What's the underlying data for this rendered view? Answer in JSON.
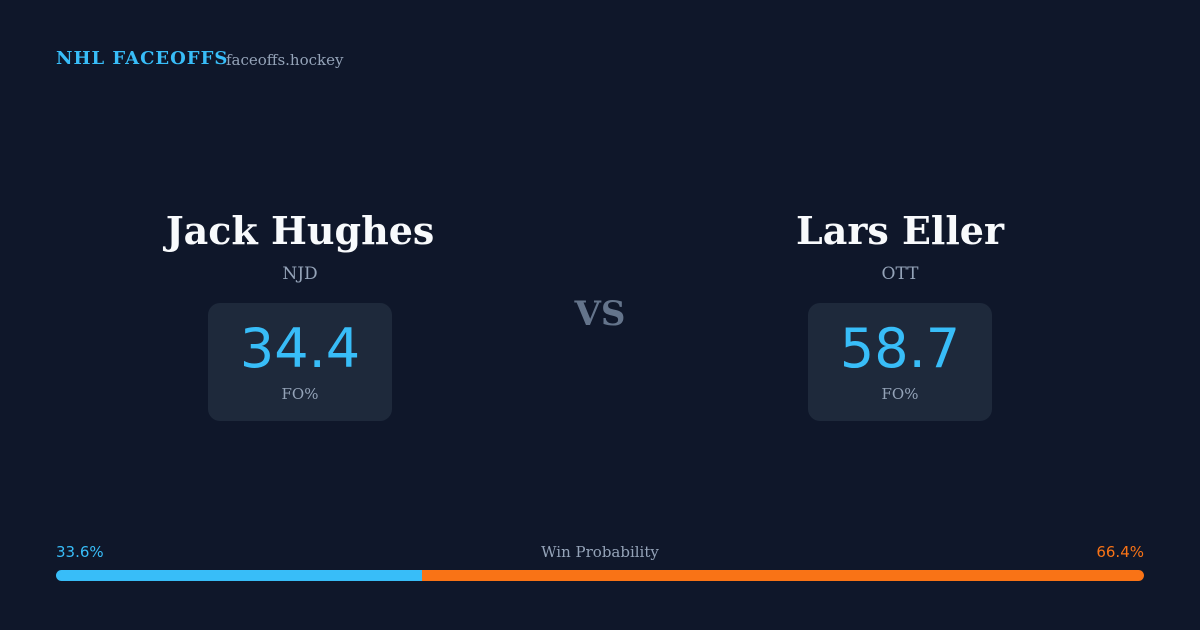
{
  "header": {
    "brand": "NHL FACEOFFS",
    "site": "faceoffs.hockey"
  },
  "players": [
    {
      "name": "Jack Hughes",
      "team": "NJD",
      "fo_value": 34.4,
      "fo_label": "FO%"
    },
    {
      "name": "Lars Eller",
      "team": "OTT",
      "fo_value": 58.7,
      "fo_label": "FO%"
    }
  ],
  "vs": "VS",
  "win_probability": {
    "label": "Win Probability",
    "values": [
      33.6,
      66.4
    ],
    "value_labels": [
      "33.6%",
      "66.4%"
    ],
    "colors": [
      "#38bdf8",
      "#f97316"
    ]
  }
}
